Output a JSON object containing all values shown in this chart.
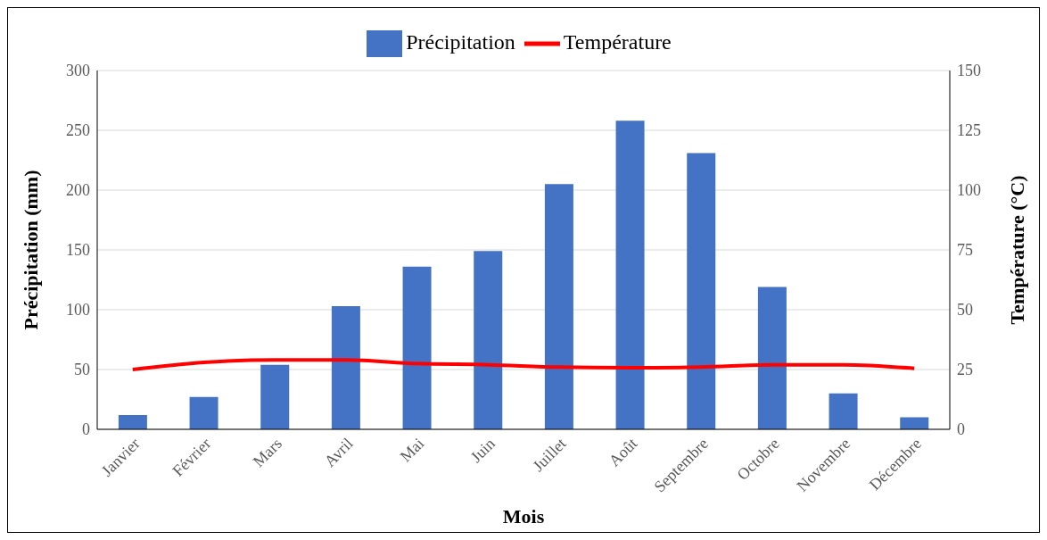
{
  "chart_data": {
    "type": "bar",
    "xlabel": "Mois",
    "ylabel": "Précipitation (mm)",
    "y2label": "Température (°C)",
    "categories": [
      "Janvier",
      "Février",
      "Mars",
      "Avril",
      "Mai",
      "Juin",
      "Juillet",
      "Août",
      "Septembre",
      "Octobre",
      "Novembre",
      "Décembre"
    ],
    "series": [
      {
        "name": "Précipitation",
        "color": "#4472c4",
        "values": [
          12,
          27,
          54,
          103,
          136,
          149,
          205,
          258,
          231,
          119,
          30,
          10
        ]
      },
      {
        "name": "Température",
        "type": "line",
        "axis": "y2",
        "color": "#ff0000",
        "values": [
          25,
          28,
          29,
          29,
          27.5,
          27,
          26,
          25.7,
          26,
          27,
          27,
          25.5
        ]
      }
    ],
    "ylim": [
      0,
      300
    ],
    "yticks": [
      0,
      50,
      100,
      150,
      200,
      250,
      300
    ],
    "y2lim": [
      0,
      150
    ],
    "y2ticks": [
      0,
      25,
      50,
      75,
      100,
      125,
      150
    ],
    "grid": "y",
    "legend": "top",
    "marker": "none",
    "line_style": "solid"
  }
}
